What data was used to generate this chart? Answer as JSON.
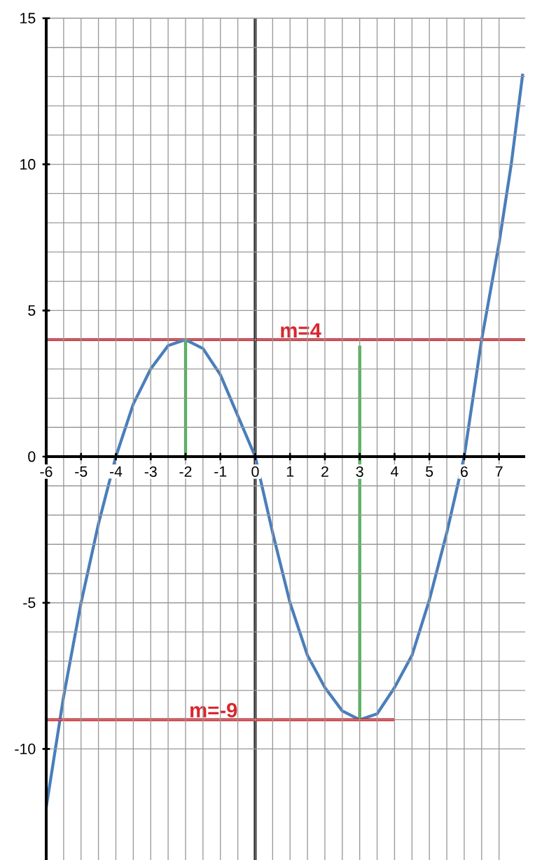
{
  "chart_data": {
    "type": "line",
    "xlim": [
      -6,
      7.75
    ],
    "ylim": [
      -13.8,
      15
    ],
    "xticks": [
      -6,
      -5,
      -4,
      -3,
      -2,
      -1,
      0,
      1,
      2,
      3,
      4,
      5,
      6,
      7
    ],
    "yticks": [
      -10,
      -5,
      0,
      5,
      10,
      15
    ],
    "grid": true,
    "marker": "none",
    "line_style": "solid",
    "series": [
      {
        "color": "#4a7ebb",
        "x": [
          -6,
          -5.5,
          -5,
          -4.5,
          -4,
          -3.5,
          -3,
          -2.5,
          -2,
          -1.5,
          -1,
          -0.5,
          0,
          0.5,
          1,
          1.5,
          2,
          2.5,
          3,
          3.5,
          4,
          4.5,
          5,
          5.5,
          6,
          6.5,
          7,
          7.35,
          7.68
        ],
        "values": [
          -12,
          -8.2,
          -5,
          -2.3,
          0,
          1.8,
          3,
          3.8,
          4,
          3.7,
          2.8,
          1.4,
          0,
          -2.6,
          -5,
          -6.8,
          -7.9,
          -8.7,
          -9,
          -8.8,
          -7.9,
          -6.8,
          -4.9,
          -2.6,
          0,
          4,
          7.3,
          10,
          13.1
        ]
      },
      {
        "color": "#3cb54a",
        "x": [
          -2,
          -2
        ],
        "values": [
          0,
          4
        ]
      },
      {
        "color": "#3cb54a",
        "x": [
          3,
          3
        ],
        "values": [
          -9,
          3.8
        ]
      },
      {
        "color": "#d9262f",
        "x": [
          -6,
          4
        ],
        "values": [
          -9,
          -9
        ]
      }
    ],
    "ref_lines": [
      {
        "axis": "y",
        "value": 4,
        "color": "#d9262f"
      },
      {
        "axis": "x",
        "value": 0,
        "color": "#000000"
      }
    ],
    "annotations": [
      {
        "text": "m=4",
        "x": 1.3,
        "y": 4
      },
      {
        "text": "m=-9",
        "x": -1.2,
        "y": -9
      }
    ]
  }
}
